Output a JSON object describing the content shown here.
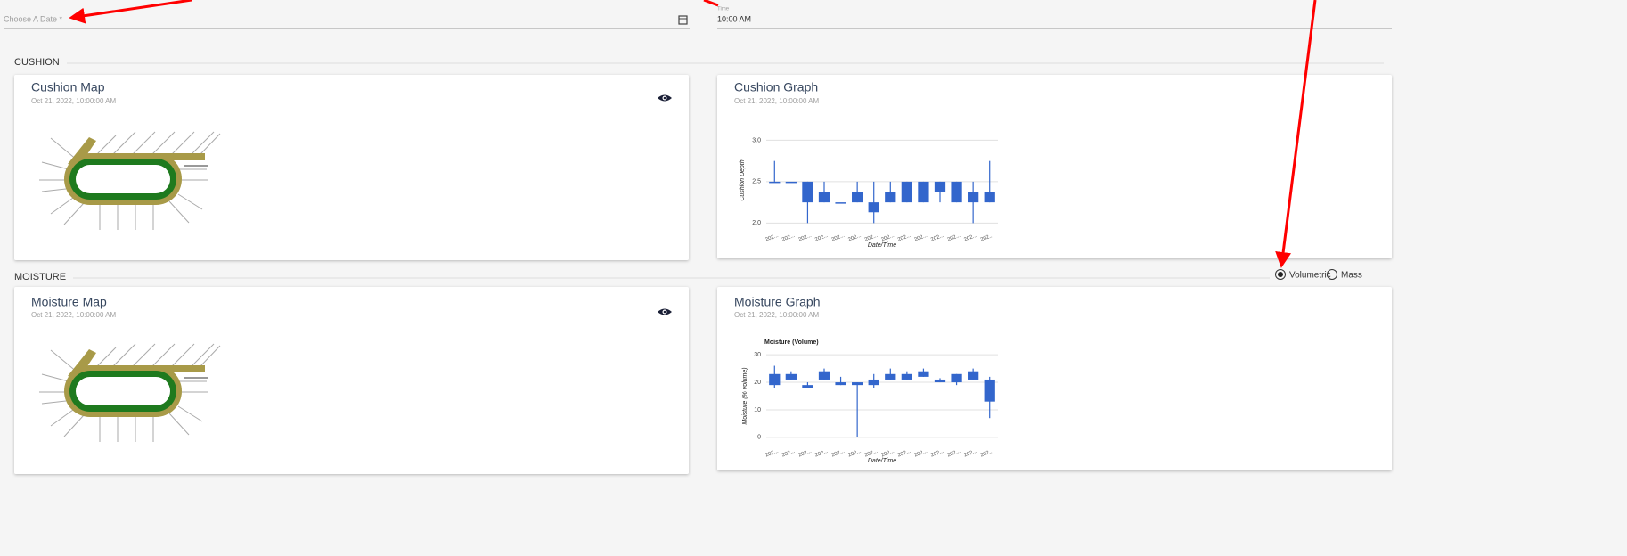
{
  "form": {
    "date_label": "Choose A Date *",
    "time_label": "Time",
    "time_value": "10:00 AM"
  },
  "sections": [
    {
      "title": "CUSHION",
      "map": {
        "title": "Cushion Map",
        "timestamp": "Oct 21, 2022, 10:00:00 AM"
      }
    },
    {
      "title": "MOISTURE",
      "options": [
        "Volumetric",
        "Mass"
      ],
      "selected": 0,
      "map": {
        "title": "Moisture Map",
        "timestamp": "Oct 21, 2022, 10:00:00 AM"
      }
    }
  ],
  "chart_data": [
    {
      "type": "candlestick",
      "title": "Cushion Graph",
      "subtitle": "Oct 21, 2022, 10:00:00 AM",
      "xlabel": "Date/Time",
      "ylabel": "Cushion Depth",
      "categories": [
        "202...",
        "202...",
        "202...",
        "202...",
        "202...",
        "202...",
        "202...",
        "202...",
        "202...",
        "202...",
        "202...",
        "202...",
        "202...",
        "202..."
      ],
      "open": [
        2.5,
        2.5,
        2.25,
        2.25,
        2.25,
        2.25,
        2.13,
        2.25,
        2.25,
        2.25,
        2.38,
        2.25,
        2.25,
        2.25
      ],
      "close": [
        2.5,
        2.5,
        2.5,
        2.38,
        2.25,
        2.38,
        2.25,
        2.38,
        2.5,
        2.5,
        2.5,
        2.5,
        2.38,
        2.38
      ],
      "low": [
        2.5,
        2.5,
        2.0,
        2.25,
        2.25,
        2.25,
        2.0,
        2.25,
        2.25,
        2.25,
        2.25,
        2.25,
        2.0,
        2.25
      ],
      "high": [
        2.75,
        2.5,
        2.5,
        2.5,
        2.25,
        2.5,
        2.5,
        2.5,
        2.5,
        2.5,
        2.5,
        2.5,
        2.5,
        2.75
      ],
      "color": "#3366cc",
      "ylim": [
        1.95,
        3.08
      ],
      "yticks": [
        {
          "value": 2,
          "label": "2.0"
        },
        {
          "value": 2.5,
          "label": "2.5"
        },
        {
          "value": 3,
          "label": "3.0"
        }
      ],
      "grid": true
    },
    {
      "type": "candlestick",
      "title": "Moisture Graph",
      "subtitle": "Oct 21, 2022, 10:00:00 AM",
      "plot_title": "Moisture (Volume)",
      "xlabel": "Date/Time",
      "ylabel": "Moisture (% volume)",
      "categories": [
        "202...",
        "202...",
        "202...",
        "202...",
        "202...",
        "202...",
        "202...",
        "202...",
        "202...",
        "202...",
        "202...",
        "202...",
        "202...",
        "202..."
      ],
      "open": [
        19,
        21,
        18,
        21,
        19,
        19,
        19,
        21,
        21,
        22,
        20,
        20,
        21,
        13
      ],
      "close": [
        23,
        23,
        19,
        24,
        20,
        20,
        21,
        23,
        23,
        24,
        21,
        23,
        24,
        21
      ],
      "low": [
        18,
        21,
        18,
        21,
        19,
        0,
        18,
        21,
        21,
        22,
        20,
        19,
        21,
        7
      ],
      "high": [
        26,
        24,
        20,
        25,
        22,
        20,
        23,
        25,
        24,
        25,
        21.5,
        23,
        25,
        22
      ],
      "color": "#3366cc",
      "ylim": [
        -2,
        32
      ],
      "yticks": [
        0,
        10,
        20,
        30
      ],
      "grid": true
    }
  ]
}
